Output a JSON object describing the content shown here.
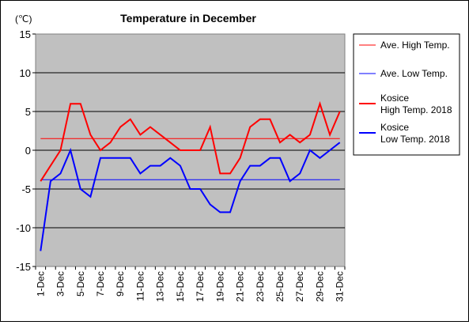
{
  "chart_data": {
    "type": "line",
    "title": "Temperature in December",
    "unit_label": "(℃)",
    "ylim": [
      -15,
      15
    ],
    "y_ticks": [
      15,
      10,
      5,
      0,
      -5,
      -10,
      -15
    ],
    "categories": [
      "1-Dec",
      "2-Dec",
      "3-Dec",
      "4-Dec",
      "5-Dec",
      "6-Dec",
      "7-Dec",
      "8-Dec",
      "9-Dec",
      "10-Dec",
      "11-Dec",
      "12-Dec",
      "13-Dec",
      "14-Dec",
      "15-Dec",
      "16-Dec",
      "17-Dec",
      "18-Dec",
      "19-Dec",
      "20-Dec",
      "21-Dec",
      "22-Dec",
      "23-Dec",
      "24-Dec",
      "25-Dec",
      "26-Dec",
      "27-Dec",
      "28-Dec",
      "29-Dec",
      "30-Dec",
      "31-Dec"
    ],
    "x_tick_labels": [
      "1-Dec",
      "3-Dec",
      "5-Dec",
      "7-Dec",
      "9-Dec",
      "11-Dec",
      "13-Dec",
      "15-Dec",
      "17-Dec",
      "19-Dec",
      "21-Dec",
      "23-Dec",
      "25-Dec",
      "27-Dec",
      "29-Dec",
      "31-Dec"
    ],
    "grid": true,
    "legend_position": "right",
    "series": [
      {
        "name": "Ave. High Temp.",
        "color": "#ff0000",
        "style": "thin",
        "values": [
          1.5,
          1.5,
          1.5,
          1.5,
          1.5,
          1.5,
          1.5,
          1.5,
          1.5,
          1.5,
          1.5,
          1.5,
          1.5,
          1.5,
          1.5,
          1.5,
          1.5,
          1.5,
          1.5,
          1.5,
          1.5,
          1.5,
          1.5,
          1.5,
          1.5,
          1.5,
          1.5,
          1.5,
          1.5,
          1.5,
          1.5
        ]
      },
      {
        "name": "Ave. Low Temp.",
        "color": "#0000ff",
        "style": "thin",
        "values": [
          -3.8,
          -3.8,
          -3.8,
          -3.8,
          -3.8,
          -3.8,
          -3.8,
          -3.8,
          -3.8,
          -3.8,
          -3.8,
          -3.8,
          -3.8,
          -3.8,
          -3.8,
          -3.8,
          -3.8,
          -3.8,
          -3.8,
          -3.8,
          -3.8,
          -3.8,
          -3.8,
          -3.8,
          -3.8,
          -3.8,
          -3.8,
          -3.8,
          -3.8,
          -3.8,
          -3.8
        ]
      },
      {
        "name": "Kosice High Temp. 2018",
        "legend_lines": [
          "Kosice",
          "High Temp. 2018"
        ],
        "color": "#ff0000",
        "style": "thick",
        "values": [
          -4,
          -2,
          0,
          6,
          6,
          2,
          0,
          1,
          3,
          4,
          2,
          3,
          2,
          1,
          0,
          0,
          0,
          3,
          -3,
          -3,
          -1,
          3,
          4,
          4,
          1,
          2,
          1,
          2,
          6,
          2,
          5
        ]
      },
      {
        "name": "Kosice Low Temp. 2018",
        "legend_lines": [
          "Kosice",
          "Low Temp. 2018"
        ],
        "color": "#0000ff",
        "style": "thick",
        "values": [
          -13,
          -4,
          -3,
          0,
          -5,
          -6,
          -1,
          -1,
          -1,
          -1,
          -3,
          -2,
          -2,
          -1,
          -2,
          -5,
          -5,
          -7,
          -8,
          -8,
          -4,
          -2,
          -2,
          -1,
          -1,
          -4,
          -3,
          0,
          -1,
          0,
          1
        ]
      }
    ]
  }
}
